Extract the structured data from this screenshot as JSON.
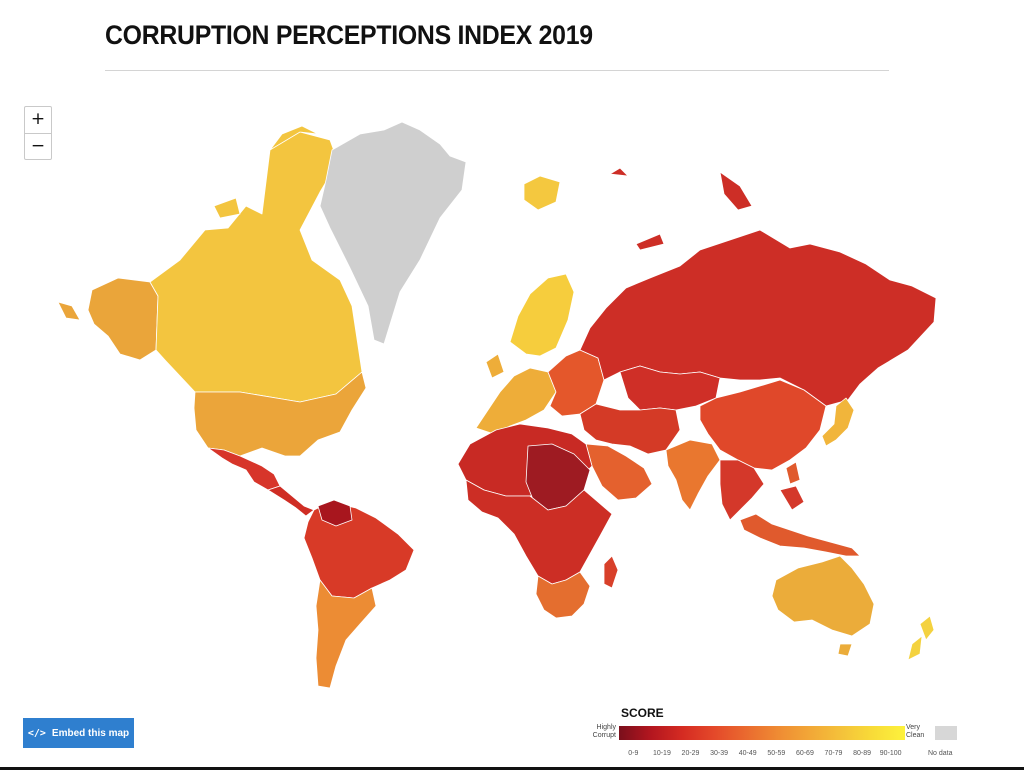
{
  "title": "CORRUPTION PERCEPTIONS INDEX 2019",
  "zoom": {
    "in_label": "+",
    "out_label": "−"
  },
  "embed": {
    "icon": "</>",
    "label": "Embed this map"
  },
  "legend": {
    "title": "SCORE",
    "low_label_1": "Highly",
    "low_label_2": "Corrupt",
    "high_label_1": "Very",
    "high_label_2": "Clean",
    "no_data_label": "No data",
    "no_data_color": "#d7d7d7",
    "bins": [
      {
        "label": "0-9",
        "color": "#7a0f1c"
      },
      {
        "label": "10-19",
        "color": "#b3161f"
      },
      {
        "label": "20-29",
        "color": "#d52b22"
      },
      {
        "label": "30-39",
        "color": "#e4492a"
      },
      {
        "label": "40-49",
        "color": "#ea6a2f"
      },
      {
        "label": "50-59",
        "color": "#ef8b33"
      },
      {
        "label": "60-69",
        "color": "#f2a737"
      },
      {
        "label": "70-79",
        "color": "#f4c23a"
      },
      {
        "label": "80-89",
        "color": "#f8dc38"
      },
      {
        "label": "90-100",
        "color": "#fdf23c"
      }
    ]
  },
  "regions": [
    {
      "name": "alaska",
      "color": "#eaa53a"
    },
    {
      "name": "canada",
      "color": "#f3c53f"
    },
    {
      "name": "greenland",
      "color": "#cfcfcf"
    },
    {
      "name": "usa",
      "color": "#eba53a"
    },
    {
      "name": "mexico",
      "color": "#d7352a"
    },
    {
      "name": "central-america",
      "color": "#cf2d24"
    },
    {
      "name": "south-america-north",
      "color": "#d83a27"
    },
    {
      "name": "venezuela",
      "color": "#a8161e"
    },
    {
      "name": "southern-cone",
      "color": "#ec8c34"
    },
    {
      "name": "iceland",
      "color": "#f4c83f"
    },
    {
      "name": "scandinavia",
      "color": "#f6cd3d"
    },
    {
      "name": "western-europe",
      "color": "#eead39"
    },
    {
      "name": "eastern-europe",
      "color": "#e4572b"
    },
    {
      "name": "russia",
      "color": "#cd2e26"
    },
    {
      "name": "central-asia",
      "color": "#cf2f27"
    },
    {
      "name": "china",
      "color": "#e0482a"
    },
    {
      "name": "japan",
      "color": "#f1b53b"
    },
    {
      "name": "middle-east",
      "color": "#d43a26"
    },
    {
      "name": "arabia",
      "color": "#e4612e"
    },
    {
      "name": "india",
      "color": "#e9772f"
    },
    {
      "name": "southeast-asia",
      "color": "#d4382a"
    },
    {
      "name": "north-africa",
      "color": "#c82a24"
    },
    {
      "name": "sahel",
      "color": "#9e1b22"
    },
    {
      "name": "africa-south",
      "color": "#cc2e25"
    },
    {
      "name": "southern-africa",
      "color": "#e46e2f"
    },
    {
      "name": "madagascar",
      "color": "#d8402a"
    },
    {
      "name": "indonesia",
      "color": "#e05a2d"
    },
    {
      "name": "australia",
      "color": "#ebac3a"
    },
    {
      "name": "new-zealand",
      "color": "#f4d23f"
    }
  ]
}
